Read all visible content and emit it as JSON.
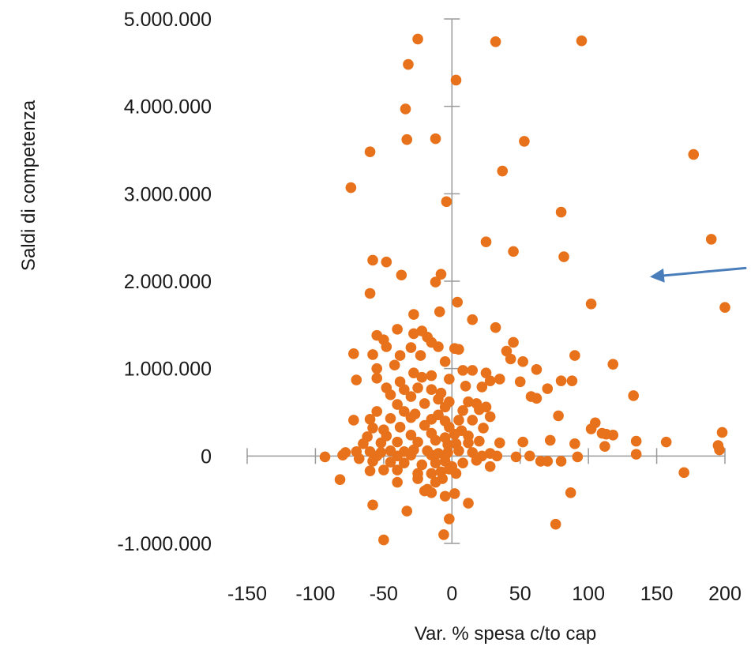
{
  "chart_data": {
    "type": "scatter",
    "title": "",
    "xlabel": "Var. % spesa c/to cap",
    "ylabel": "Saldi di competenza",
    "xlim": [
      -150,
      200
    ],
    "ylim": [
      -1000000,
      5000000
    ],
    "x_ticks": [
      -150,
      -100,
      -50,
      0,
      50,
      100,
      150,
      200
    ],
    "y_ticks": [
      -1000000,
      0,
      1000000,
      2000000,
      3000000,
      4000000,
      5000000
    ],
    "x_tick_labels": [
      "-150",
      "-100",
      "-50",
      "0",
      "50",
      "100",
      "150",
      "200"
    ],
    "y_tick_labels": [
      "-1.000.000",
      "0",
      "1.000.000",
      "2.000.000",
      "3.000.000",
      "4.000.000",
      "5.000.000"
    ],
    "grid": false,
    "legend": "none",
    "colors": {
      "points": "#E8721B",
      "axis": "#9a9a9a",
      "arrow": "#4A7EBB"
    },
    "annotations": [
      {
        "type": "arrow",
        "from": [
          215,
          2150000
        ],
        "to": [
          145,
          2050000
        ]
      }
    ],
    "series": [
      {
        "values": [
          [
            -25,
            4770000
          ],
          [
            32,
            4740000
          ],
          [
            95,
            4750000
          ],
          [
            -32,
            4480000
          ],
          [
            3,
            4300000
          ],
          [
            -34,
            3970000
          ],
          [
            -33,
            3620000
          ],
          [
            -12,
            3630000
          ],
          [
            53,
            3600000
          ],
          [
            -60,
            3480000
          ],
          [
            37,
            3260000
          ],
          [
            177,
            3450000
          ],
          [
            -74,
            3070000
          ],
          [
            -4,
            2910000
          ],
          [
            80,
            2790000
          ],
          [
            25,
            2450000
          ],
          [
            190,
            2480000
          ],
          [
            45,
            2340000
          ],
          [
            -58,
            2240000
          ],
          [
            -48,
            2220000
          ],
          [
            82,
            2280000
          ],
          [
            -37,
            2070000
          ],
          [
            -8,
            2080000
          ],
          [
            -12,
            1990000
          ],
          [
            -60,
            1860000
          ],
          [
            4,
            1760000
          ],
          [
            -9,
            1650000
          ],
          [
            102,
            1740000
          ],
          [
            200,
            1700000
          ],
          [
            -28,
            1620000
          ],
          [
            15,
            1560000
          ],
          [
            -55,
            1380000
          ],
          [
            -28,
            1400000
          ],
          [
            -22,
            1430000
          ],
          [
            -18,
            1360000
          ],
          [
            -40,
            1450000
          ],
          [
            32,
            1470000
          ],
          [
            -50,
            1330000
          ],
          [
            -30,
            1240000
          ],
          [
            -15,
            1300000
          ],
          [
            -10,
            1250000
          ],
          [
            2,
            1230000
          ],
          [
            5,
            1220000
          ],
          [
            -48,
            1250000
          ],
          [
            -58,
            1160000
          ],
          [
            -72,
            1170000
          ],
          [
            -38,
            1150000
          ],
          [
            -23,
            1150000
          ],
          [
            -5,
            1080000
          ],
          [
            40,
            1200000
          ],
          [
            45,
            1300000
          ],
          [
            43,
            1110000
          ],
          [
            52,
            1080000
          ],
          [
            90,
            1150000
          ],
          [
            118,
            1050000
          ],
          [
            -55,
            1000000
          ],
          [
            -42,
            1040000
          ],
          [
            -28,
            950000
          ],
          [
            -15,
            920000
          ],
          [
            8,
            980000
          ],
          [
            15,
            980000
          ],
          [
            25,
            950000
          ],
          [
            62,
            990000
          ],
          [
            -70,
            870000
          ],
          [
            -55,
            890000
          ],
          [
            -38,
            850000
          ],
          [
            -22,
            900000
          ],
          [
            -2,
            880000
          ],
          [
            28,
            860000
          ],
          [
            35,
            880000
          ],
          [
            50,
            850000
          ],
          [
            80,
            860000
          ],
          [
            88,
            860000
          ],
          [
            -48,
            780000
          ],
          [
            -35,
            760000
          ],
          [
            -25,
            780000
          ],
          [
            -15,
            760000
          ],
          [
            -8,
            720000
          ],
          [
            10,
            800000
          ],
          [
            22,
            790000
          ],
          [
            70,
            770000
          ],
          [
            -45,
            700000
          ],
          [
            -30,
            680000
          ],
          [
            -10,
            650000
          ],
          [
            -2,
            620000
          ],
          [
            12,
            620000
          ],
          [
            58,
            680000
          ],
          [
            62,
            660000
          ],
          [
            133,
            690000
          ],
          [
            -40,
            590000
          ],
          [
            -20,
            600000
          ],
          [
            -5,
            560000
          ],
          [
            18,
            600000
          ],
          [
            25,
            560000
          ],
          [
            -55,
            510000
          ],
          [
            -35,
            510000
          ],
          [
            -27,
            480000
          ],
          [
            -10,
            470000
          ],
          [
            8,
            520000
          ],
          [
            20,
            530000
          ],
          [
            -72,
            410000
          ],
          [
            -60,
            420000
          ],
          [
            -45,
            430000
          ],
          [
            -30,
            440000
          ],
          [
            -15,
            420000
          ],
          [
            -5,
            400000
          ],
          [
            5,
            410000
          ],
          [
            15,
            410000
          ],
          [
            28,
            450000
          ],
          [
            78,
            460000
          ],
          [
            -58,
            320000
          ],
          [
            -50,
            300000
          ],
          [
            -38,
            330000
          ],
          [
            -20,
            350000
          ],
          [
            -2,
            330000
          ],
          [
            7,
            290000
          ],
          [
            23,
            320000
          ],
          [
            -62,
            220000
          ],
          [
            -48,
            230000
          ],
          [
            -30,
            240000
          ],
          [
            -15,
            260000
          ],
          [
            -5,
            210000
          ],
          [
            2,
            250000
          ],
          [
            12,
            230000
          ],
          [
            105,
            380000
          ],
          [
            102,
            310000
          ],
          [
            110,
            260000
          ],
          [
            113,
            250000
          ],
          [
            118,
            240000
          ],
          [
            198,
            270000
          ],
          [
            -65,
            140000
          ],
          [
            -52,
            150000
          ],
          [
            -40,
            160000
          ],
          [
            -25,
            160000
          ],
          [
            -12,
            180000
          ],
          [
            -3,
            130000
          ],
          [
            3,
            140000
          ],
          [
            12,
            150000
          ],
          [
            20,
            170000
          ],
          [
            35,
            150000
          ],
          [
            52,
            160000
          ],
          [
            72,
            180000
          ],
          [
            90,
            140000
          ],
          [
            112,
            110000
          ],
          [
            135,
            170000
          ],
          [
            157,
            160000
          ],
          [
            195,
            120000
          ],
          [
            -78,
            40000
          ],
          [
            -70,
            50000
          ],
          [
            -60,
            50000
          ],
          [
            -52,
            40000
          ],
          [
            -45,
            60000
          ],
          [
            -35,
            50000
          ],
          [
            -28,
            70000
          ],
          [
            -18,
            60000
          ],
          [
            -10,
            30000
          ],
          [
            -3,
            40000
          ],
          [
            5,
            60000
          ],
          [
            15,
            40000
          ],
          [
            28,
            30000
          ],
          [
            -80,
            10000
          ],
          [
            -55,
            0
          ],
          [
            -40,
            0
          ],
          [
            -30,
            10000
          ],
          [
            -15,
            10000
          ],
          [
            -5,
            0
          ],
          [
            22,
            0
          ],
          [
            33,
            0
          ],
          [
            47,
            -10000
          ],
          [
            57,
            0
          ],
          [
            65,
            -60000
          ],
          [
            70,
            -60000
          ],
          [
            80,
            -60000
          ],
          [
            92,
            -10000
          ],
          [
            135,
            20000
          ],
          [
            196,
            70000
          ],
          [
            -93,
            -10000
          ],
          [
            -68,
            -30000
          ],
          [
            -58,
            -60000
          ],
          [
            -45,
            -70000
          ],
          [
            -35,
            -80000
          ],
          [
            -22,
            -100000
          ],
          [
            -12,
            -80000
          ],
          [
            -5,
            -60000
          ],
          [
            8,
            -80000
          ],
          [
            18,
            -50000
          ],
          [
            -60,
            -170000
          ],
          [
            -50,
            -160000
          ],
          [
            -40,
            -160000
          ],
          [
            -25,
            -200000
          ],
          [
            -15,
            -200000
          ],
          [
            -8,
            -180000
          ],
          [
            -2,
            -150000
          ],
          [
            0,
            -120000
          ],
          [
            28,
            -120000
          ],
          [
            -82,
            -270000
          ],
          [
            -40,
            -300000
          ],
          [
            -25,
            -260000
          ],
          [
            -18,
            -380000
          ],
          [
            -12,
            -300000
          ],
          [
            -7,
            -260000
          ],
          [
            3,
            -200000
          ],
          [
            -20,
            -400000
          ],
          [
            -15,
            -420000
          ],
          [
            -5,
            -460000
          ],
          [
            2,
            -430000
          ],
          [
            87,
            -420000
          ],
          [
            12,
            -540000
          ],
          [
            -58,
            -560000
          ],
          [
            -33,
            -630000
          ],
          [
            -2,
            -720000
          ],
          [
            76,
            -780000
          ],
          [
            -6,
            -900000
          ],
          [
            -50,
            -960000
          ],
          [
            170,
            -190000
          ]
        ]
      }
    ]
  }
}
